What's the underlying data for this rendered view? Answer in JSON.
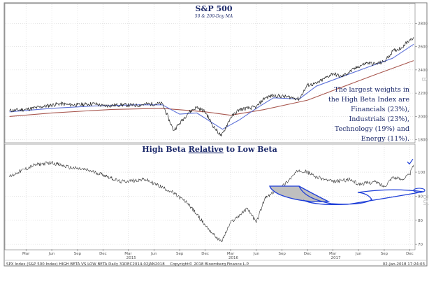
{
  "chart_data": [
    {
      "type": "line",
      "title": "S&P 500",
      "subtitle": "50 & 200-Day MA",
      "ylim": [
        1780,
        2820
      ],
      "y_ticks": [
        "1800",
        "2000",
        "2200",
        "2400",
        "2600",
        "2800"
      ],
      "grid": true,
      "annotation": "The largest weights in the High Beta Index are Financials (23%), Industrials (23%), Technology (19%) and Energy (11%).",
      "annotation_lines": [
        "The largest weights in",
        "the High Beta Index are",
        "Financials (23%),",
        "Industrials (23%),",
        "Technology (19%) and",
        "Energy (11%)."
      ],
      "watermark": "B",
      "series": [
        {
          "color": "#222222",
          "x": [
            "2014-01",
            "2014-03",
            "2014-05",
            "2014-07",
            "2014-08",
            "2014-09",
            "2014-10",
            "2014-11",
            "2014-12",
            "2015-02",
            "2015-04",
            "2015-05",
            "2015-07",
            "2015-08-24",
            "2015-09",
            "2015-10",
            "2015-11",
            "2015-12",
            "2016-01",
            "2016-02-11",
            "2016-03",
            "2016-04",
            "2016-06",
            "2016-07",
            "2016-08",
            "2016-10",
            "2016-11",
            "2016-12",
            "2017-01",
            "2017-03",
            "2017-04",
            "2017-06",
            "2017-07",
            "2017-08",
            "2017-09",
            "2017-10",
            "2017-11",
            "2017-12",
            "2017-12-29"
          ],
          "values": [
            2050,
            2060,
            2085,
            2110,
            2100,
            2100,
            2105,
            2110,
            2090,
            2100,
            2095,
            2105,
            2110,
            1880,
            1940,
            2030,
            2080,
            2040,
            1910,
            1830,
            1990,
            2060,
            2080,
            2160,
            2180,
            2165,
            2150,
            2270,
            2280,
            2370,
            2340,
            2430,
            2460,
            2450,
            2470,
            2560,
            2590,
            2660,
            2680
          ]
        },
        {
          "color": "#5e72d8",
          "x": [
            "2014-01",
            "2014-06",
            "2014-11",
            "2015-04",
            "2015-07",
            "2015-09",
            "2015-11",
            "2016-02",
            "2016-04",
            "2016-06",
            "2016-08",
            "2016-11",
            "2017-01",
            "2017-04",
            "2017-07",
            "2017-10",
            "2017-12-29"
          ],
          "values": [
            2040,
            2070,
            2090,
            2100,
            2100,
            2020,
            2030,
            1890,
            1970,
            2070,
            2160,
            2150,
            2260,
            2340,
            2420,
            2500,
            2620
          ]
        },
        {
          "color": "#a8574f",
          "x": [
            "2014-01",
            "2014-06",
            "2015-01",
            "2015-07",
            "2015-12",
            "2016-03",
            "2016-07",
            "2016-12",
            "2017-04",
            "2017-08",
            "2017-12-29"
          ],
          "values": [
            2000,
            2030,
            2060,
            2070,
            2040,
            2010,
            2060,
            2140,
            2250,
            2360,
            2480
          ]
        }
      ]
    },
    {
      "type": "line",
      "title": "High Beta Relative to Low Beta",
      "title_parts": [
        "High Beta ",
        "Relative",
        " to Low Beta"
      ],
      "ylim": [
        68,
        107
      ],
      "y_ticks": [
        "70",
        "80",
        "90",
        "100"
      ],
      "grid": true,
      "watermark": "Bol",
      "series": [
        {
          "color": "#333333",
          "x": [
            "2014-01",
            "2014-02",
            "2014-04",
            "2014-06",
            "2014-08",
            "2014-10",
            "2014-12",
            "2015-02",
            "2015-05",
            "2015-08",
            "2015-10",
            "2015-12",
            "2016-01",
            "2016-02-11",
            "2016-03",
            "2016-05",
            "2016-06",
            "2016-07",
            "2016-09",
            "2016-11",
            "2016-12",
            "2017-01",
            "2017-03",
            "2017-05",
            "2017-06",
            "2017-08",
            "2017-09",
            "2017-10",
            "2017-11",
            "2017-12",
            "2017-12-29"
          ],
          "values": [
            98,
            100,
            103,
            104,
            102,
            101,
            99,
            96,
            97,
            92,
            87,
            78,
            74,
            71,
            79,
            85,
            79,
            89,
            94,
            101,
            100,
            98,
            96,
            97,
            95,
            96,
            94,
            98,
            97,
            99,
            103
          ]
        }
      ],
      "annotations": [
        {
          "type": "checkmark",
          "color": "#1f3fd8",
          "x": "2017-12-29",
          "y": 104
        }
      ]
    }
  ],
  "x_axis_labels": [
    "Mar",
    "Jun",
    "Sep",
    "Dec",
    "Mar",
    "Jun",
    "Sep",
    "Dec",
    "Mar",
    "Jun",
    "Sep",
    "Dec",
    "Mar",
    "Jun",
    "Sep",
    "Dec"
  ],
  "year_labels": [
    "2015",
    "2016",
    "2017"
  ],
  "footer_left": "SPX Index (S&P 500 Index) HIGH BETA VS LOW BETA Daily 31DEC2014-02JAN2018",
  "footer_center": "Copyright© 2018 Bloomberg Finance L.P.",
  "footer_right": "02-Jan-2018 17:24:03",
  "colors": {
    "title": "#1d2a6b",
    "shape_outline": "#1f3fd8",
    "shape_fill": "#bfbfbf"
  }
}
